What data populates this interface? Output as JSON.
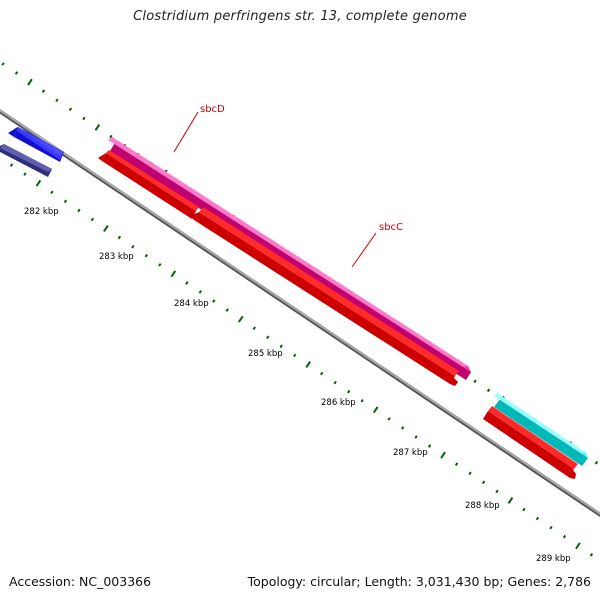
{
  "title": "Clostridium perfringens str. 13, complete genome",
  "footer": {
    "accession": "Accession: NC_003366",
    "summary": "Topology: circular; Length: 3,031,430 bp; Genes: 2,786"
  },
  "axis": {
    "ticks": [
      {
        "kbp": 282,
        "label": "282 kbp"
      },
      {
        "kbp": 283,
        "label": "283 kbp"
      },
      {
        "kbp": 284,
        "label": "284 kbp"
      },
      {
        "kbp": 285,
        "label": "285 kbp"
      },
      {
        "kbp": 286,
        "label": "286 kbp"
      },
      {
        "kbp": 287,
        "label": "287 kbp"
      },
      {
        "kbp": 288,
        "label": "288 kbp"
      },
      {
        "kbp": 289,
        "label": "289 kbp"
      }
    ]
  },
  "gene_labels": [
    {
      "name": "sbcD"
    },
    {
      "name": "sbcC"
    }
  ],
  "features": [
    {
      "id": "blue-gene",
      "color": "#1a1af0",
      "strand": "forward"
    },
    {
      "id": "navy-gene",
      "color": "#3a3a8e",
      "strand": "forward"
    },
    {
      "id": "sbcD",
      "color": "#ff1a9c",
      "strand": "forward"
    },
    {
      "id": "red-gene-a",
      "color": "#ff0000",
      "strand": "reverse"
    },
    {
      "id": "sbcC-red",
      "color": "#ff0000",
      "strand": "reverse"
    },
    {
      "id": "cyan-gene",
      "color": "#00f0f0",
      "strand": "forward"
    },
    {
      "id": "red-gene-b",
      "color": "#ff0000",
      "strand": "reverse"
    }
  ],
  "colors": {
    "backbone": "#8c8c8c",
    "tick": "#006400",
    "label": "#cc0000",
    "text": "#000000"
  }
}
